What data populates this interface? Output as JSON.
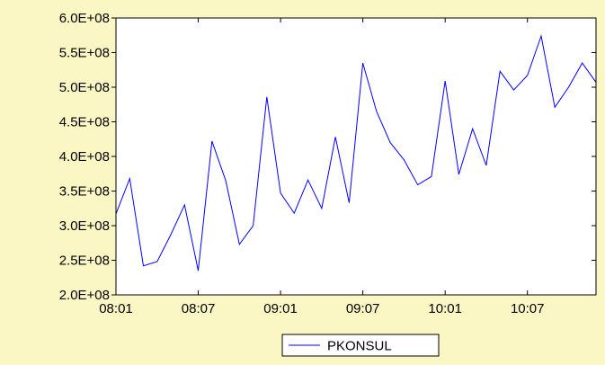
{
  "chart_data": {
    "type": "line",
    "title": "",
    "xlabel": "",
    "ylabel": "",
    "ylim": [
      200000000,
      600000000
    ],
    "y_ticks": [
      200000000,
      250000000,
      300000000,
      350000000,
      400000000,
      450000000,
      500000000,
      550000000,
      600000000
    ],
    "y_tick_labels": [
      "2.0E+08",
      "2.5E+08",
      "3.0E+08",
      "3.5E+08",
      "4.0E+08",
      "4.5E+08",
      "5.0E+08",
      "5.5E+08",
      "6.0E+08"
    ],
    "x_ticks": [
      {
        "label": "08:01",
        "index": 0
      },
      {
        "label": "08:07",
        "index": 6
      },
      {
        "label": "09:01",
        "index": 12
      },
      {
        "label": "09:07",
        "index": 18
      },
      {
        "label": "10:01",
        "index": 24
      },
      {
        "label": "10:07",
        "index": 30
      }
    ],
    "grid": false,
    "legend_position": "bottom-center",
    "line_color": "#0000ff",
    "background_color": "#fbf7c4",
    "plot_background_color": "#ffffff",
    "series": [
      {
        "name": "PKONSUL",
        "values": [
          317000000,
          368000000,
          242000000,
          248000000,
          287000000,
          330000000,
          235000000,
          422000000,
          365000000,
          273000000,
          300000000,
          486000000,
          347000000,
          318000000,
          366000000,
          325000000,
          428000000,
          333000000,
          535000000,
          465000000,
          420000000,
          395000000,
          359000000,
          371000000,
          509000000,
          374000000,
          440000000,
          387000000,
          523000000,
          496000000,
          517000000,
          574000000,
          471000000,
          500000000,
          535000000,
          507000000
        ]
      }
    ]
  }
}
